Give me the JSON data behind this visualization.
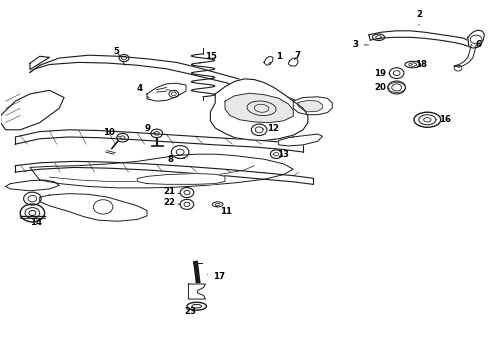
{
  "background_color": "#ffffff",
  "line_color": "#1a1a1a",
  "text_color": "#000000",
  "fig_width": 4.89,
  "fig_height": 3.6,
  "dpi": 100,
  "label_positions": {
    "1": [
      0.57,
      0.845,
      0.545,
      0.82
    ],
    "2": [
      0.858,
      0.962,
      0.858,
      0.932
    ],
    "3": [
      0.728,
      0.878,
      0.76,
      0.876
    ],
    "4": [
      0.285,
      0.755,
      0.305,
      0.728
    ],
    "5": [
      0.238,
      0.858,
      0.248,
      0.838
    ],
    "6": [
      0.98,
      0.878,
      0.968,
      0.875
    ],
    "7": [
      0.608,
      0.848,
      0.6,
      0.828
    ],
    "8": [
      0.348,
      0.558,
      0.36,
      0.578
    ],
    "9": [
      0.302,
      0.645,
      0.315,
      0.632
    ],
    "10": [
      0.222,
      0.632,
      0.244,
      0.62
    ],
    "11": [
      0.462,
      0.412,
      0.44,
      0.428
    ],
    "12": [
      0.558,
      0.645,
      0.538,
      0.642
    ],
    "13": [
      0.578,
      0.572,
      0.558,
      0.572
    ],
    "14": [
      0.072,
      0.382,
      0.076,
      0.398
    ],
    "15": [
      0.432,
      0.845,
      0.408,
      0.825
    ],
    "16": [
      0.912,
      0.668,
      0.892,
      0.668
    ],
    "17": [
      0.448,
      0.232,
      0.418,
      0.238
    ],
    "18": [
      0.862,
      0.822,
      0.842,
      0.822
    ],
    "19": [
      0.778,
      0.798,
      0.798,
      0.796
    ],
    "20": [
      0.778,
      0.758,
      0.798,
      0.756
    ],
    "21": [
      0.345,
      0.468,
      0.368,
      0.462
    ],
    "22": [
      0.345,
      0.438,
      0.368,
      0.432
    ],
    "23": [
      0.388,
      0.132,
      0.378,
      0.148
    ]
  }
}
